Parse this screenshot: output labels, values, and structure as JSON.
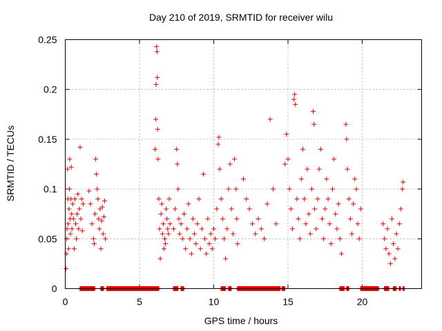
{
  "chart_data": {
    "type": "scatter",
    "title": "Day 210 of 2019, SRMTID for receiver wilu",
    "xlabel": "GPS time / hours",
    "ylabel": "SRMTID / TECUs",
    "xlim": [
      0,
      24
    ],
    "ylim": [
      0,
      0.25
    ],
    "xticks": [
      0,
      5,
      10,
      15,
      20
    ],
    "xtick_labels": [
      "0",
      "5",
      "10",
      "15",
      "20"
    ],
    "yticks": [
      0,
      0.05,
      0.1,
      0.15,
      0.2,
      0.25
    ],
    "ytick_labels": [
      "0",
      "0.05",
      "0.1",
      "0.15",
      "0.2",
      "0.25"
    ],
    "grid": true,
    "marker": "+",
    "color": "#e00000",
    "series": [
      {
        "name": "SRMTID",
        "points": [
          [
            0.05,
            0.02
          ],
          [
            0.08,
            0.035
          ],
          [
            0.1,
            0.05
          ],
          [
            0.12,
            0.06
          ],
          [
            0.15,
            0.12
          ],
          [
            0.18,
            0.09
          ],
          [
            0.2,
            0.065
          ],
          [
            0.22,
            0.04
          ],
          [
            0.25,
            0.08
          ],
          [
            0.28,
            0.1
          ],
          [
            0.3,
            0.13
          ],
          [
            0.33,
            0.07
          ],
          [
            0.35,
            0.055
          ],
          [
            0.38,
            0.09
          ],
          [
            0.4,
            0.122
          ],
          [
            0.43,
            0.075
          ],
          [
            0.45,
            0.06
          ],
          [
            0.5,
            0.085
          ],
          [
            0.55,
            0.07
          ],
          [
            0.6,
            0.04
          ],
          [
            0.65,
            0.09
          ],
          [
            0.7,
            0.065
          ],
          [
            0.75,
            0.05
          ],
          [
            0.8,
            0.075
          ],
          [
            0.85,
            0.095
          ],
          [
            0.9,
            0.06
          ],
          [
            0.95,
            0.08
          ],
          [
            1.0,
            0.142
          ],
          [
            1.05,
            0.07
          ],
          [
            1.1,
            0.09
          ],
          [
            1.15,
            0.058
          ],
          [
            1.2,
            0.085
          ],
          [
            1.6,
            0.098
          ],
          [
            1.7,
            0.085
          ],
          [
            1.8,
            0.065
          ],
          [
            1.9,
            0.05
          ],
          [
            1.95,
            0.045
          ],
          [
            2.0,
            0.075
          ],
          [
            2.05,
            0.13
          ],
          [
            2.1,
            0.115
          ],
          [
            2.15,
            0.1
          ],
          [
            2.2,
            0.09
          ],
          [
            2.25,
            0.07
          ],
          [
            2.3,
            0.06
          ],
          [
            2.35,
            0.08
          ],
          [
            2.4,
            0.04
          ],
          [
            2.45,
            0.068
          ],
          [
            2.5,
            0.082
          ],
          [
            2.55,
            0.055
          ],
          [
            2.6,
            0.072
          ],
          [
            2.65,
            0.088
          ],
          [
            2.7,
            0.05
          ],
          [
            6.05,
            0.14
          ],
          [
            6.1,
            0.17
          ],
          [
            6.12,
            0.205
          ],
          [
            6.15,
            0.243
          ],
          [
            6.18,
            0.238
          ],
          [
            6.2,
            0.212
          ],
          [
            6.22,
            0.16
          ],
          [
            6.25,
            0.13
          ],
          [
            6.3,
            0.09
          ],
          [
            6.35,
            0.06
          ],
          [
            6.4,
            0.03
          ],
          [
            6.45,
            0.075
          ],
          [
            6.5,
            0.085
          ],
          [
            6.55,
            0.055
          ],
          [
            6.6,
            0.065
          ],
          [
            6.65,
            0.04
          ],
          [
            6.7,
            0.05
          ],
          [
            6.75,
            0.045
          ],
          [
            6.8,
            0.08
          ],
          [
            6.85,
            0.07
          ],
          [
            6.9,
            0.06
          ],
          [
            6.95,
            0.055
          ],
          [
            7.0,
            0.09
          ],
          [
            7.05,
            0.065
          ],
          [
            7.3,
            0.06
          ],
          [
            7.4,
            0.08
          ],
          [
            7.5,
            0.14
          ],
          [
            7.55,
            0.125
          ],
          [
            7.6,
            0.1
          ],
          [
            7.65,
            0.07
          ],
          [
            7.7,
            0.055
          ],
          [
            7.8,
            0.065
          ],
          [
            7.9,
            0.05
          ],
          [
            8.0,
            0.075
          ],
          [
            8.1,
            0.04
          ],
          [
            8.2,
            0.06
          ],
          [
            8.3,
            0.085
          ],
          [
            8.4,
            0.05
          ],
          [
            8.5,
            0.035
          ],
          [
            8.6,
            0.07
          ],
          [
            8.7,
            0.055
          ],
          [
            8.8,
            0.045
          ],
          [
            8.9,
            0.065
          ],
          [
            9.0,
            0.09
          ],
          [
            9.1,
            0.04
          ],
          [
            9.2,
            0.06
          ],
          [
            9.3,
            0.115
          ],
          [
            9.4,
            0.05
          ],
          [
            9.5,
            0.035
          ],
          [
            9.6,
            0.07
          ],
          [
            9.7,
            0.045
          ],
          [
            9.8,
            0.055
          ],
          [
            9.9,
            0.04
          ],
          [
            10.0,
            0.06
          ],
          [
            10.1,
            0.05
          ],
          [
            10.2,
            0.08
          ],
          [
            10.3,
            0.145
          ],
          [
            10.35,
            0.152
          ],
          [
            10.4,
            0.12
          ],
          [
            10.5,
            0.09
          ],
          [
            10.6,
            0.07
          ],
          [
            10.7,
            0.05
          ],
          [
            10.8,
            0.03
          ],
          [
            10.9,
            0.06
          ],
          [
            11.0,
            0.1
          ],
          [
            11.1,
            0.125
          ],
          [
            11.2,
            0.08
          ],
          [
            11.3,
            0.055
          ],
          [
            11.4,
            0.13
          ],
          [
            11.5,
            0.1
          ],
          [
            11.55,
            0.07
          ],
          [
            11.6,
            0.045
          ],
          [
            12.0,
            0.11
          ],
          [
            12.2,
            0.09
          ],
          [
            12.4,
            0.08
          ],
          [
            12.6,
            0.065
          ],
          [
            12.8,
            0.055
          ],
          [
            13.0,
            0.07
          ],
          [
            13.2,
            0.06
          ],
          [
            13.4,
            0.05
          ],
          [
            13.6,
            0.085
          ],
          [
            13.8,
            0.17
          ],
          [
            14.0,
            0.1
          ],
          [
            14.2,
            0.065
          ],
          [
            14.8,
            0.125
          ],
          [
            14.9,
            0.155
          ],
          [
            15.0,
            0.13
          ],
          [
            15.1,
            0.1
          ],
          [
            15.2,
            0.08
          ],
          [
            15.3,
            0.06
          ],
          [
            15.4,
            0.19
          ],
          [
            15.45,
            0.195
          ],
          [
            15.5,
            0.185
          ],
          [
            15.6,
            0.09
          ],
          [
            15.7,
            0.07
          ],
          [
            15.8,
            0.05
          ],
          [
            15.9,
            0.11
          ],
          [
            16.0,
            0.14
          ],
          [
            16.1,
            0.09
          ],
          [
            16.2,
            0.065
          ],
          [
            16.3,
            0.12
          ],
          [
            16.4,
            0.075
          ],
          [
            16.5,
            0.055
          ],
          [
            16.6,
            0.1
          ],
          [
            16.7,
            0.178
          ],
          [
            16.75,
            0.165
          ],
          [
            16.8,
            0.08
          ],
          [
            16.9,
            0.06
          ],
          [
            17.0,
            0.09
          ],
          [
            17.1,
            0.12
          ],
          [
            17.2,
            0.14
          ],
          [
            17.3,
            0.07
          ],
          [
            17.4,
            0.05
          ],
          [
            17.5,
            0.08
          ],
          [
            17.6,
            0.11
          ],
          [
            17.7,
            0.09
          ],
          [
            17.8,
            0.065
          ],
          [
            17.9,
            0.045
          ],
          [
            18.0,
            0.1
          ],
          [
            18.1,
            0.13
          ],
          [
            18.2,
            0.075
          ],
          [
            18.3,
            0.06
          ],
          [
            18.4,
            0.085
          ],
          [
            18.5,
            0.05
          ],
          [
            18.6,
            0.035
          ],
          [
            18.9,
            0.165
          ],
          [
            18.95,
            0.15
          ],
          [
            19.0,
            0.12
          ],
          [
            19.1,
            0.09
          ],
          [
            19.2,
            0.07
          ],
          [
            19.3,
            0.055
          ],
          [
            19.4,
            0.085
          ],
          [
            19.5,
            0.11
          ],
          [
            19.6,
            0.1
          ],
          [
            19.7,
            0.065
          ],
          [
            19.8,
            0.05
          ],
          [
            19.9,
            0.08
          ],
          [
            21.4,
            0.065
          ],
          [
            21.5,
            0.05
          ],
          [
            21.6,
            0.04
          ],
          [
            21.7,
            0.06
          ],
          [
            21.8,
            0.035
          ],
          [
            21.9,
            0.025
          ],
          [
            22.0,
            0.07
          ],
          [
            22.1,
            0.045
          ],
          [
            22.2,
            0.03
          ],
          [
            22.3,
            0.055
          ],
          [
            22.4,
            0.04
          ],
          [
            22.5,
            0.065
          ],
          [
            22.6,
            0.08
          ],
          [
            22.7,
            0.1
          ],
          [
            22.75,
            0.107
          ]
        ]
      }
    ],
    "zero_markers_hours": [
      [
        1.0,
        2.0
      ],
      [
        2.4,
        2.6
      ],
      [
        2.8,
        6.3
      ],
      [
        7.3,
        7.6
      ],
      [
        7.8,
        8.0
      ],
      [
        10.5,
        10.8
      ],
      [
        11.0,
        11.2
      ],
      [
        11.6,
        14.5
      ],
      [
        14.6,
        14.8
      ],
      [
        18.5,
        18.8
      ],
      [
        18.95,
        19.1
      ],
      [
        19.9,
        21.1
      ],
      [
        21.5,
        21.8
      ],
      [
        22.1,
        22.3
      ],
      [
        22.5,
        22.6
      ],
      [
        22.75,
        22.85
      ]
    ]
  }
}
